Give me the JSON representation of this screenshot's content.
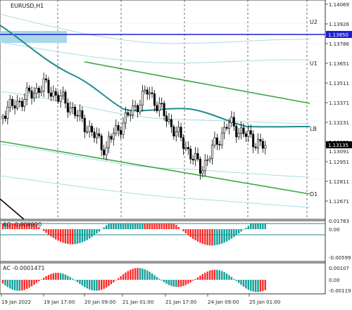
{
  "chart": {
    "symbol": "EURUSD,H1",
    "colors": {
      "background": "#ffffff",
      "frame": "#333333",
      "grid": "#b8c3cc",
      "candle": "#000000",
      "ma": "#1c8d8d",
      "channel": "#3ea53e",
      "envelope": "#a8dde0",
      "level": "#1f1fcc",
      "zone": "#a9d8ea",
      "priceTag": "#000000",
      "aoUp": "#12a09a",
      "aoDown": "#ff2828",
      "black": "#000000"
    },
    "level_labels": {
      "u2": "U2",
      "u1": "U1",
      "lb": "LB",
      "d1": "D1"
    },
    "price_axis": [
      "1.14069",
      "1.13926",
      "1.13786",
      "1.13651",
      "1.13511",
      "1.13371",
      "1.13231",
      "1.13091",
      "1.12951",
      "1.12811",
      "1.12671"
    ],
    "price_tags": {
      "level": "1.13850",
      "current": "1.13135"
    },
    "time_axis": [
      "19 Jan 2022",
      "19 Jan 17:00",
      "20 Jan 09:00",
      "21 Jan 01:00",
      "21 Jan 17:00",
      "24 Jan 09:00",
      "25 Jan 01:00"
    ]
  },
  "ao_panel": {
    "label": "AO -0.000990",
    "axis": [
      "0.01783",
      "0.00",
      "-0.00599"
    ]
  },
  "ac_panel": {
    "label": "AC -0.0001471",
    "axis": [
      "0.00107",
      "0.00",
      "-0.00119"
    ]
  }
}
